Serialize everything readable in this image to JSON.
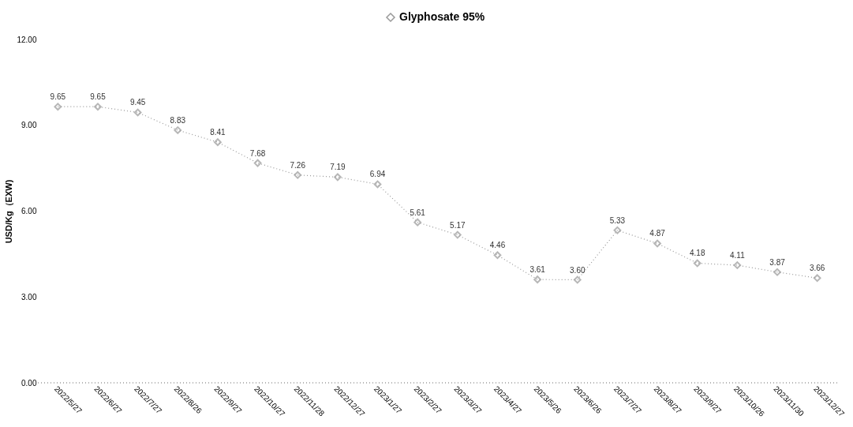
{
  "chart_data": {
    "type": "line",
    "ylabel": "USD/Kg（EXW)",
    "legend": "top",
    "categories": [
      "2022/5/27",
      "2022/6/27",
      "2022/7/27",
      "2022/8/26",
      "2022/9/27",
      "2022/10/27",
      "2022/11/28",
      "2022/12/27",
      "2023/1/27",
      "2023/2/27",
      "2023/3/27",
      "2023/4/27",
      "2023/5/26",
      "2023/6/26",
      "2023/7/27",
      "2023/8/27",
      "2023/9/27",
      "2023/10/26",
      "2023/11/30",
      "2023/12/27"
    ],
    "series": [
      {
        "name": "Glyphosate 95%",
        "color": "#999999",
        "values": [
          9.65,
          9.65,
          9.45,
          8.83,
          8.41,
          7.68,
          7.26,
          7.19,
          6.94,
          5.61,
          5.17,
          4.46,
          3.61,
          3.6,
          5.33,
          4.87,
          4.18,
          4.11,
          3.87,
          3.66
        ],
        "value_labels": [
          "9.65",
          "9.65",
          "9.45",
          "8.83",
          "8.41",
          "7.68",
          "7.26",
          "7.19",
          "6.94",
          "5.61",
          "5.17",
          "4.46",
          "3.61",
          "3.60",
          "5.33",
          "4.87",
          "4.18",
          "4.11",
          "3.87",
          "3.66"
        ]
      }
    ],
    "ylim": [
      0,
      12
    ],
    "yticks": [
      {
        "value": 0,
        "label": "0.00"
      },
      {
        "value": 3,
        "label": "3.00"
      },
      {
        "value": 6,
        "label": "6.00"
      },
      {
        "value": 9,
        "label": "9.00"
      },
      {
        "value": 12,
        "label": "12.00"
      }
    ],
    "grid": false,
    "marker": "diamond",
    "line_style": "dotted"
  }
}
